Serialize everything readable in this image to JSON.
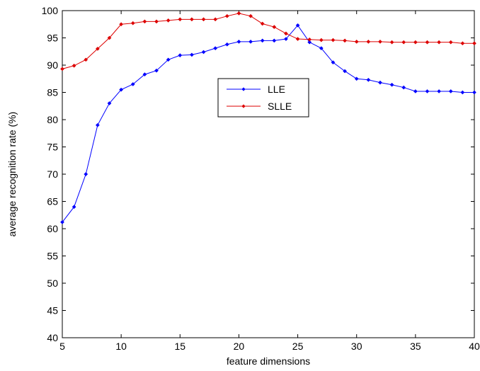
{
  "chart_data": {
    "type": "line",
    "title": "",
    "xlabel": "feature dimensions",
    "ylabel": "average recognition rate (%)",
    "xlim": [
      5,
      40
    ],
    "ylim": [
      40,
      100
    ],
    "xticks": [
      5,
      10,
      15,
      20,
      25,
      30,
      35,
      40
    ],
    "yticks": [
      40,
      45,
      50,
      55,
      60,
      65,
      70,
      75,
      80,
      85,
      90,
      95,
      100
    ],
    "grid": false,
    "legend_position": "center",
    "x": [
      5,
      6,
      7,
      8,
      9,
      10,
      11,
      12,
      13,
      14,
      15,
      16,
      17,
      18,
      19,
      20,
      21,
      22,
      23,
      24,
      25,
      26,
      27,
      28,
      29,
      30,
      31,
      32,
      33,
      34,
      35,
      36,
      37,
      38,
      39,
      40
    ],
    "series": [
      {
        "name": "LLE",
        "color": "#0000ff",
        "values": [
          61.2,
          64.0,
          70.0,
          79.0,
          83.0,
          85.5,
          86.5,
          88.3,
          89.0,
          91.0,
          91.8,
          91.9,
          92.4,
          93.1,
          93.8,
          94.3,
          94.3,
          94.5,
          94.5,
          94.8,
          97.3,
          94.2,
          93.1,
          90.5,
          88.9,
          87.5,
          87.3,
          86.8,
          86.4,
          85.9,
          85.2,
          85.2,
          85.2,
          85.2,
          85.0,
          85.0
        ]
      },
      {
        "name": "SLLE",
        "color": "#dd0000",
        "values": [
          89.3,
          89.9,
          91.0,
          93.0,
          95.0,
          97.5,
          97.7,
          98.0,
          98.0,
          98.2,
          98.4,
          98.4,
          98.4,
          98.4,
          99.0,
          99.5,
          99.0,
          97.6,
          97.0,
          95.8,
          94.8,
          94.7,
          94.6,
          94.6,
          94.5,
          94.3,
          94.3,
          94.3,
          94.2,
          94.2,
          94.2,
          94.2,
          94.2,
          94.2,
          94.0,
          94.0
        ]
      }
    ]
  }
}
